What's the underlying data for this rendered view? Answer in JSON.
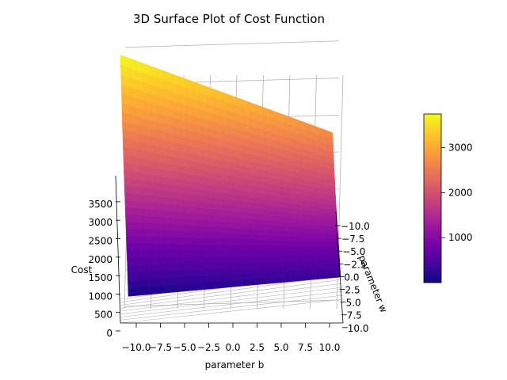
{
  "chart_data": {
    "type": "surface",
    "title": "3D Surface Plot of Cost Function",
    "xlabel": "parameter b",
    "ylabel": "parameter w",
    "zlabel": "Cost",
    "x_ticks": [
      "−10.0",
      "−7.5",
      "−5.0",
      "−2.5",
      "0.0",
      "2.5",
      "5.0",
      "7.5",
      "10.0"
    ],
    "y_ticks": [
      "−10.0",
      "−7.5",
      "−5.0",
      "−2.5",
      "0.0",
      "2.5",
      "5.0",
      "7.5",
      "10.0"
    ],
    "z_ticks": [
      "0",
      "500",
      "1000",
      "1500",
      "2000",
      "2500",
      "3000",
      "3500"
    ],
    "xlim": [
      -10,
      10
    ],
    "ylim": [
      -10,
      10
    ],
    "zlim": [
      0,
      3800
    ],
    "corner_values": [
      {
        "b": -10,
        "w": -10,
        "cost": 3750
      },
      {
        "b": 10,
        "w": -10,
        "cost": 2700
      },
      {
        "b": -10,
        "w": 10,
        "cost": 60
      },
      {
        "b": 10,
        "w": 10,
        "cost": 320
      }
    ],
    "colormap": "plasma",
    "colorbar_ticks": [
      1000,
      2000,
      3000
    ],
    "colorbar_range": [
      0,
      3750
    ],
    "grid": true
  },
  "colors": {
    "plasma_stops": [
      "#0d0887",
      "#46039f",
      "#7201a8",
      "#9c179e",
      "#bd3786",
      "#d8576b",
      "#ed7953",
      "#fb9f3a",
      "#fdca26",
      "#f0f921"
    ],
    "grid": "#b0b0b0",
    "axis": "#000000"
  }
}
